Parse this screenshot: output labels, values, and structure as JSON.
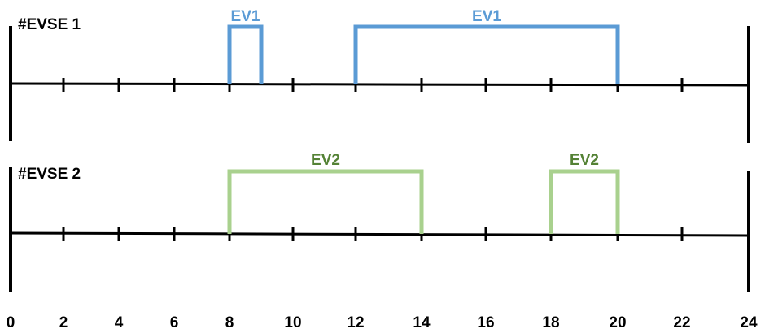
{
  "axis": {
    "ticks": [
      0,
      2,
      4,
      6,
      8,
      10,
      12,
      14,
      16,
      18,
      20,
      22,
      24
    ],
    "labels": [
      "0",
      "2",
      "4",
      "6",
      "8",
      "10",
      "12",
      "14",
      "16",
      "18",
      "20",
      "22",
      "24"
    ],
    "range": [
      0,
      24
    ]
  },
  "rows": [
    {
      "label": "#EVSE 1",
      "color": "#5b9bd5",
      "label_color": "#5b9bd5",
      "blocks": [
        {
          "name": "EV1",
          "start": 8,
          "end": 9
        },
        {
          "name": "EV1",
          "start": 12,
          "end": 20
        }
      ]
    },
    {
      "label": "#EVSE 2",
      "color": "#a9d18e",
      "label_color": "#548235",
      "blocks": [
        {
          "name": "EV2",
          "start": 8,
          "end": 14
        },
        {
          "name": "EV2",
          "start": 18,
          "end": 20
        }
      ]
    }
  ],
  "colors": {
    "axis": "#000000"
  }
}
